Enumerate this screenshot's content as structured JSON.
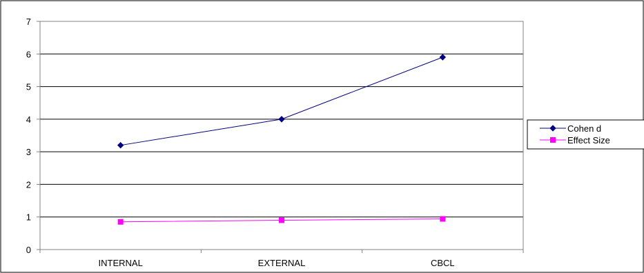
{
  "chart_data": {
    "type": "line",
    "categories": [
      "INTERNAL",
      "EXTERNAL",
      "CBCL"
    ],
    "series": [
      {
        "name": "Cohen d",
        "values": [
          3.2,
          4.0,
          5.9
        ],
        "color": "#000080",
        "marker": "diamond"
      },
      {
        "name": "Effect Size",
        "values": [
          0.85,
          0.9,
          0.94
        ],
        "color": "#FF00FF",
        "marker": "square"
      }
    ],
    "title": "",
    "xlabel": "",
    "ylabel": "",
    "ylim": [
      0,
      7
    ],
    "yticks": [
      "0",
      "1",
      "2",
      "3",
      "4",
      "5",
      "6",
      "7"
    ],
    "grid": "horizontal major gridlines",
    "legend_position": "right"
  }
}
